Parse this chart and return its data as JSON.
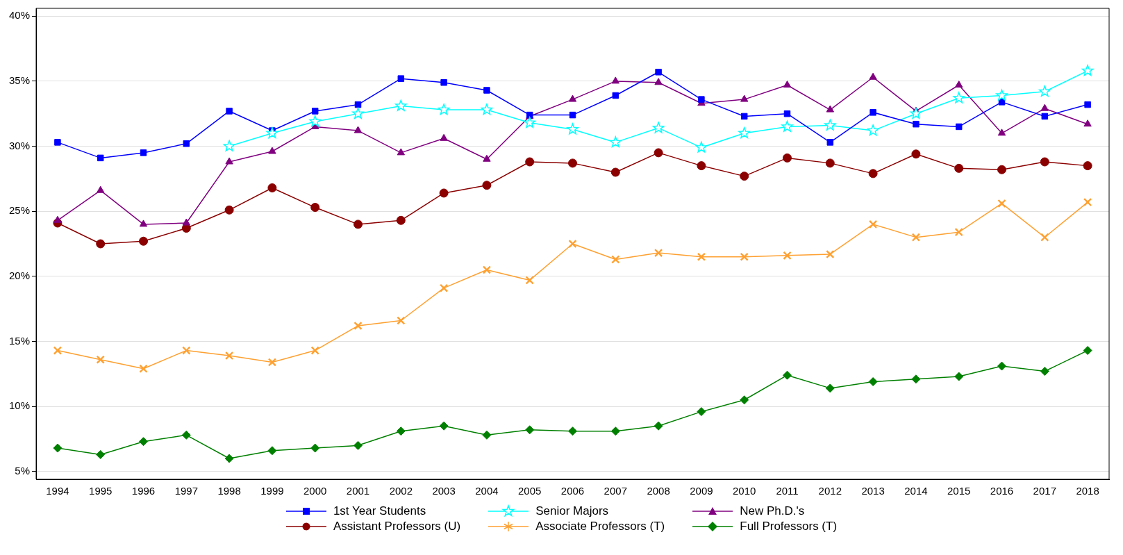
{
  "chart_data": {
    "type": "line",
    "categories": [
      "1994",
      "1995",
      "1996",
      "1997",
      "1998",
      "1999",
      "2000",
      "2001",
      "2002",
      "2003",
      "2004",
      "2005",
      "2006",
      "2007",
      "2008",
      "2009",
      "2010",
      "2011",
      "2012",
      "2013",
      "2014",
      "2015",
      "2016",
      "2017",
      "2018"
    ],
    "ylim": [
      4.4,
      40.6
    ],
    "yticks": [
      {
        "value": 5,
        "label": "5%"
      },
      {
        "value": 10,
        "label": "10%"
      },
      {
        "value": 15,
        "label": "15%"
      },
      {
        "value": 20,
        "label": "20%"
      },
      {
        "value": 25,
        "label": "25%"
      },
      {
        "value": 30,
        "label": "30%"
      },
      {
        "value": 35,
        "label": "35%"
      },
      {
        "value": 40,
        "label": "40%"
      }
    ],
    "grid": "y",
    "legend": "bottom",
    "line_style": "solid",
    "series": [
      {
        "name": "1st Year Students",
        "color": "#0000ff",
        "marker": "square",
        "values": [
          30.3,
          29.1,
          29.5,
          30.2,
          32.7,
          31.2,
          32.7,
          33.2,
          35.2,
          34.9,
          34.3,
          32.4,
          32.4,
          33.9,
          35.7,
          33.6,
          32.3,
          32.5,
          30.3,
          32.6,
          31.7,
          31.5,
          33.4,
          32.3,
          33.2
        ]
      },
      {
        "name": "Senior Majors",
        "color": "#00ffff",
        "marker": "star",
        "values": [
          null,
          null,
          null,
          null,
          30.0,
          31.0,
          31.9,
          32.5,
          33.1,
          32.8,
          32.8,
          31.8,
          31.3,
          30.3,
          31.4,
          29.9,
          31.0,
          31.5,
          31.6,
          31.2,
          32.5,
          33.7,
          33.9,
          34.2,
          35.8
        ]
      },
      {
        "name": "New Ph.D.'s",
        "color": "#800080",
        "marker": "triangle",
        "values": [
          24.3,
          26.6,
          24.0,
          24.1,
          28.8,
          29.6,
          31.5,
          31.2,
          29.5,
          30.6,
          29.0,
          32.3,
          33.6,
          35.0,
          34.9,
          33.3,
          33.6,
          34.7,
          32.8,
          35.3,
          32.7,
          34.7,
          31.0,
          32.9,
          31.7
        ]
      },
      {
        "name": "Assistant Professors (U)",
        "color": "#8b0000",
        "marker": "circle",
        "values": [
          24.1,
          22.5,
          22.7,
          23.7,
          25.1,
          26.8,
          25.3,
          24.0,
          24.3,
          26.4,
          27.0,
          28.8,
          28.7,
          28.0,
          29.5,
          28.5,
          27.7,
          29.1,
          28.7,
          27.9,
          29.4,
          28.3,
          28.2,
          28.8,
          28.5
        ]
      },
      {
        "name": "Associate Professors (T)",
        "color": "#ffa030",
        "marker": "cross",
        "values": [
          14.3,
          13.6,
          12.9,
          14.3,
          13.9,
          13.4,
          14.3,
          16.2,
          16.6,
          19.1,
          20.5,
          19.7,
          22.5,
          21.3,
          21.8,
          21.5,
          21.5,
          21.6,
          21.7,
          24.0,
          23.0,
          23.4,
          25.6,
          23.0,
          25.7
        ]
      },
      {
        "name": "Full Professors (T)",
        "color": "#008000",
        "marker": "diamond",
        "values": [
          6.8,
          6.3,
          7.3,
          7.8,
          6.0,
          6.6,
          6.8,
          7.0,
          8.1,
          8.5,
          7.8,
          8.2,
          8.1,
          8.1,
          8.5,
          9.6,
          10.5,
          12.4,
          11.4,
          11.9,
          12.1,
          12.3,
          13.1,
          12.7,
          14.3
        ]
      }
    ]
  }
}
